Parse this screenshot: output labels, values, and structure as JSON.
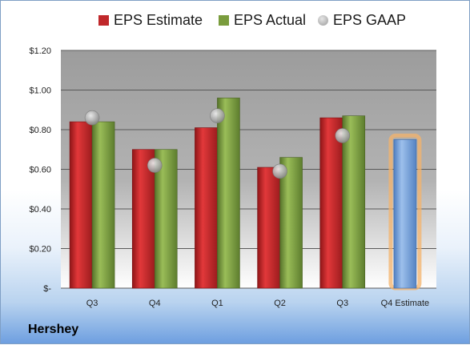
{
  "chart_data": {
    "type": "bar",
    "categories": [
      "Q3",
      "Q4",
      "Q1",
      "Q2",
      "Q3",
      "Q4 Estimate"
    ],
    "series": [
      {
        "name": "EPS Estimate",
        "values": [
          0.84,
          0.7,
          0.81,
          0.61,
          0.86,
          null
        ],
        "color": "#c0282b"
      },
      {
        "name": "EPS Actual",
        "values": [
          0.84,
          0.7,
          0.96,
          0.66,
          0.87,
          null
        ],
        "color": "#7a9c3d"
      },
      {
        "name": "EPS GAAP",
        "type": "scatter",
        "values": [
          0.86,
          0.62,
          0.87,
          0.59,
          0.77,
          null
        ],
        "color": "#a7a7a7"
      },
      {
        "name": "",
        "values": [
          null,
          null,
          null,
          null,
          null,
          0.75
        ],
        "color": "#6f9bd6",
        "highlight": "#f4b36b"
      }
    ],
    "y_tick_labels": [
      "$-",
      "$0.20",
      "$0.40",
      "$0.60",
      "$0.80",
      "$1.00",
      "$1.20"
    ],
    "ylim": [
      0,
      1.2
    ],
    "grid": true,
    "legend_position": "top",
    "footer": "Hershey"
  }
}
